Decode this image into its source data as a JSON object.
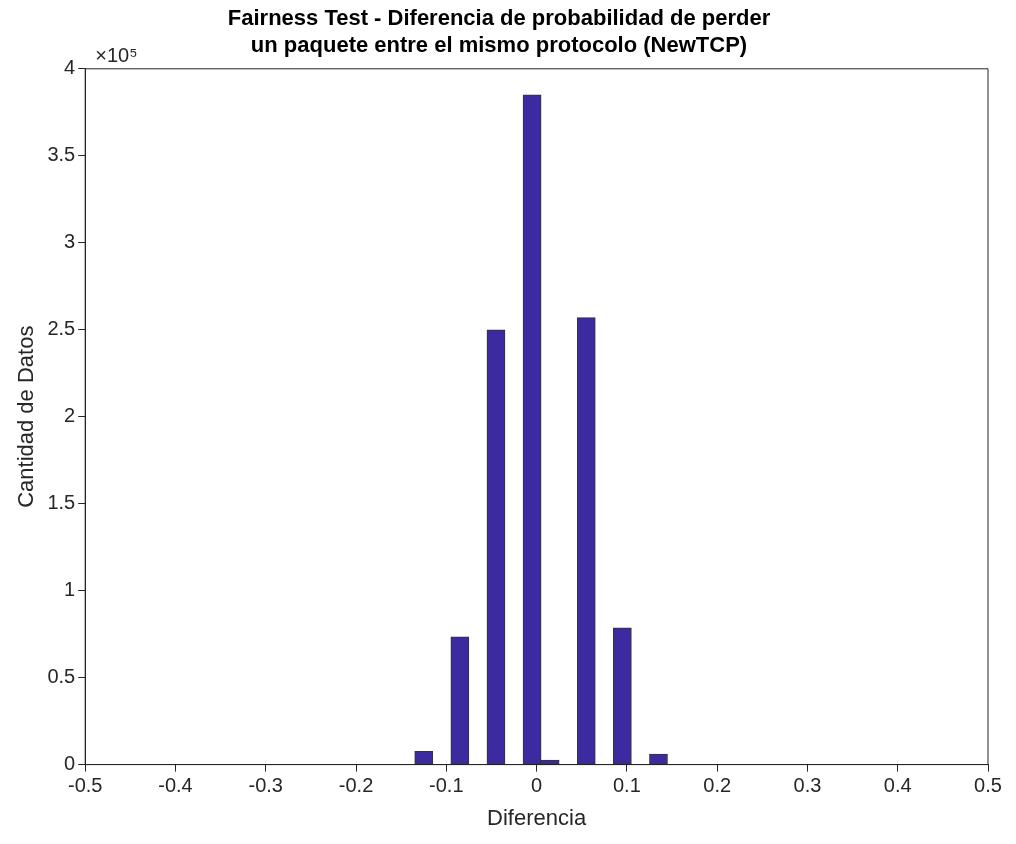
{
  "chart_data": {
    "type": "histogram",
    "title": "Fairness Test - Diferencia de probabilidad de perder\nun paquete entre el mismo protocolo (NewTCP)",
    "xlabel": "Diferencia",
    "ylabel": "Cantidad de Datos",
    "annotations": [
      "×10⁵"
    ],
    "bins": [
      -0.155,
      -0.135,
      -0.115,
      -0.095,
      -0.075,
      -0.055,
      -0.035,
      -0.015,
      0.005,
      0.025,
      0.045,
      0.065,
      0.085,
      0.105,
      0.125,
      0.145,
      0.165
    ],
    "values": [
      0,
      0.076,
      0,
      0.734,
      0,
      2.5,
      0,
      3.85,
      0.026,
      0,
      2.57,
      0,
      0.786,
      0,
      0.06,
      0
    ],
    "color": "#3b2aa0",
    "xlim": [
      -0.5,
      0.5
    ],
    "xticks": [
      -0.5,
      -0.4,
      -0.3,
      -0.2,
      -0.1,
      0,
      0.1,
      0.2,
      0.3,
      0.4,
      0.5
    ],
    "ylim": [
      0,
      4
    ],
    "yticks": [
      0,
      0.5,
      1,
      1.5,
      2,
      2.5,
      3,
      3.5,
      4
    ],
    "grid": false,
    "legend": false
  }
}
